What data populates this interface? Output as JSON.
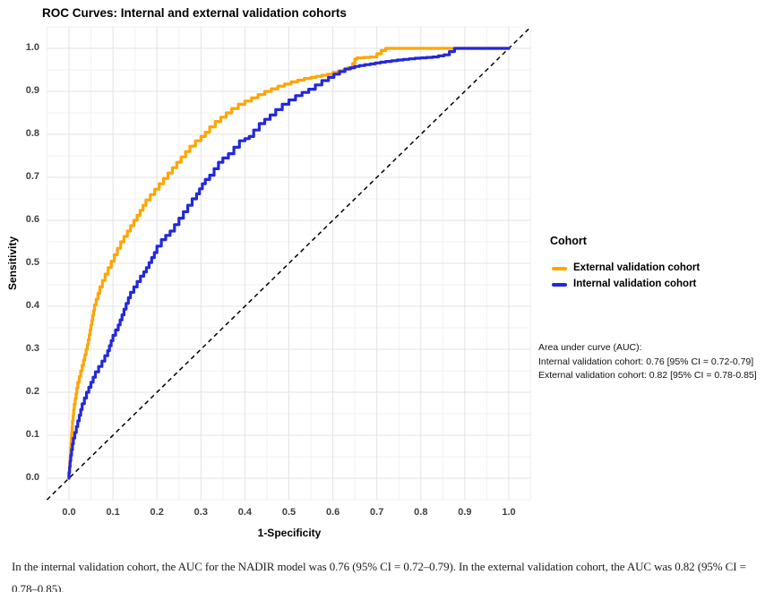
{
  "title": "ROC Curves: Internal and external validation cohorts",
  "chart_data": {
    "type": "line",
    "title": "ROC Curves: Internal and external validation cohorts",
    "xlabel": "1-Specificity",
    "ylabel": "Sensitivity",
    "xlim": [
      -0.05,
      1.05
    ],
    "ylim": [
      -0.05,
      1.05
    ],
    "grid": true,
    "xticks": [
      "0.0",
      "0.1",
      "0.2",
      "0.3",
      "0.4",
      "0.5",
      "0.6",
      "0.7",
      "0.8",
      "0.9",
      "1.0"
    ],
    "yticks": [
      "0.0",
      "0.1",
      "0.2",
      "0.3",
      "0.4",
      "0.5",
      "0.6",
      "0.7",
      "0.8",
      "0.9",
      "1.0"
    ],
    "colors": {
      "external": "#FFA500",
      "internal": "#2328DC",
      "grid_major": "#E3E3E3",
      "grid_minor": "#F1F1F1",
      "reference": "#000000"
    },
    "reference_line": {
      "style": "dashed",
      "from": [
        0,
        0
      ],
      "to": [
        1,
        1
      ]
    },
    "legend": {
      "title": "Cohort",
      "position": "right",
      "entries": [
        {
          "label": "External validation cohort",
          "color": "#FFA500"
        },
        {
          "label": "Internal validation cohort",
          "color": "#2328DC"
        }
      ]
    },
    "series": [
      {
        "name": "External validation cohort",
        "color": "#FFA500",
        "auc": 0.82,
        "ci": "0.78-0.85",
        "points": [
          [
            0,
            0
          ],
          [
            0.004,
            0.06
          ],
          [
            0.008,
            0.12
          ],
          [
            0.012,
            0.16
          ],
          [
            0.02,
            0.21
          ],
          [
            0.03,
            0.25
          ],
          [
            0.042,
            0.3
          ],
          [
            0.05,
            0.345
          ],
          [
            0.058,
            0.39
          ],
          [
            0.07,
            0.43
          ],
          [
            0.082,
            0.46
          ],
          [
            0.096,
            0.49
          ],
          [
            0.11,
            0.52
          ],
          [
            0.125,
            0.55
          ],
          [
            0.14,
            0.575
          ],
          [
            0.155,
            0.6
          ],
          [
            0.175,
            0.635
          ],
          [
            0.195,
            0.66
          ],
          [
            0.215,
            0.685
          ],
          [
            0.235,
            0.71
          ],
          [
            0.255,
            0.735
          ],
          [
            0.275,
            0.76
          ],
          [
            0.3,
            0.785
          ],
          [
            0.32,
            0.805
          ],
          [
            0.345,
            0.83
          ],
          [
            0.37,
            0.85
          ],
          [
            0.4,
            0.87
          ],
          [
            0.43,
            0.885
          ],
          [
            0.46,
            0.9
          ],
          [
            0.49,
            0.912
          ],
          [
            0.52,
            0.922
          ],
          [
            0.55,
            0.93
          ],
          [
            0.575,
            0.935
          ],
          [
            0.6,
            0.94
          ],
          [
            0.625,
            0.948
          ],
          [
            0.645,
            0.955
          ],
          [
            0.655,
            0.975
          ],
          [
            0.67,
            0.978
          ],
          [
            0.7,
            0.98
          ],
          [
            0.72,
            0.995
          ],
          [
            0.735,
            1.0
          ],
          [
            1.0,
            1.0
          ]
        ]
      },
      {
        "name": "Internal validation cohort",
        "color": "#2328DC",
        "auc": 0.76,
        "ci": "0.72-0.79",
        "points": [
          [
            0,
            0
          ],
          [
            0.004,
            0.04
          ],
          [
            0.01,
            0.08
          ],
          [
            0.02,
            0.12
          ],
          [
            0.03,
            0.16
          ],
          [
            0.045,
            0.2
          ],
          [
            0.06,
            0.235
          ],
          [
            0.075,
            0.26
          ],
          [
            0.088,
            0.285
          ],
          [
            0.1,
            0.32
          ],
          [
            0.112,
            0.345
          ],
          [
            0.125,
            0.38
          ],
          [
            0.14,
            0.42
          ],
          [
            0.155,
            0.445
          ],
          [
            0.17,
            0.47
          ],
          [
            0.182,
            0.49
          ],
          [
            0.2,
            0.525
          ],
          [
            0.22,
            0.555
          ],
          [
            0.24,
            0.575
          ],
          [
            0.25,
            0.59
          ],
          [
            0.27,
            0.62
          ],
          [
            0.29,
            0.65
          ],
          [
            0.31,
            0.685
          ],
          [
            0.33,
            0.705
          ],
          [
            0.35,
            0.735
          ],
          [
            0.375,
            0.755
          ],
          [
            0.4,
            0.785
          ],
          [
            0.42,
            0.795
          ],
          [
            0.445,
            0.825
          ],
          [
            0.47,
            0.845
          ],
          [
            0.5,
            0.87
          ],
          [
            0.53,
            0.89
          ],
          [
            0.56,
            0.905
          ],
          [
            0.59,
            0.925
          ],
          [
            0.615,
            0.94
          ],
          [
            0.64,
            0.952
          ],
          [
            0.66,
            0.958
          ],
          [
            0.685,
            0.962
          ],
          [
            0.72,
            0.968
          ],
          [
            0.76,
            0.973
          ],
          [
            0.8,
            0.977
          ],
          [
            0.84,
            0.98
          ],
          [
            0.865,
            0.985
          ],
          [
            0.888,
            1.0
          ],
          [
            1.0,
            1.0
          ]
        ]
      }
    ]
  },
  "annotation": {
    "lines": [
      "Area under curve (AUC):",
      "Internal validation cohort: 0.76 [95% CI = 0.72-0.79]",
      "External validation cohort: 0.82 [95% CI = 0.78-0.85]"
    ]
  },
  "caption": "In the internal validation cohort, the AUC for the NADIR model was 0.76 (95% CI = 0.72–0.79). In the external validation cohort, the AUC was 0.82 (95% CI = 0.78–0.85)."
}
